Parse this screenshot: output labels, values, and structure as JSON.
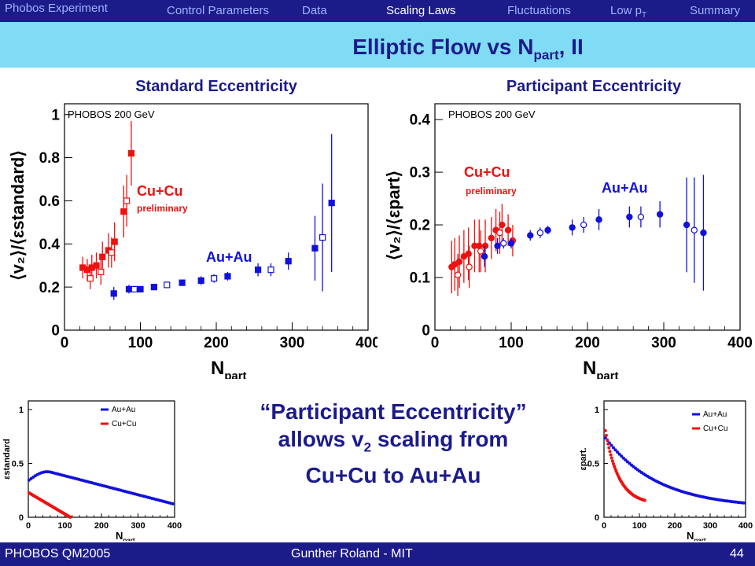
{
  "header": {
    "experiment": "Phobos Experiment",
    "nav": [
      "Control Parameters",
      "Data",
      "Scaling Laws",
      "Fluctuations",
      "Low p",
      "Summary"
    ],
    "nav_low_sub": "T",
    "active": "Scaling Laws"
  },
  "title": {
    "main": "Elliptic Flow vs N",
    "sub": "part",
    "suffix": ", II"
  },
  "message": {
    "line1": "“Participant Eccentricity”",
    "line2_pre": "allows v",
    "line2_sub": "2",
    "line2_post": " scaling from",
    "line3": "Cu+Cu to Au+Au"
  },
  "footer": {
    "left": "PHOBOS QM2005",
    "center": "Gunther Roland - MIT",
    "page": "44"
  },
  "colors": {
    "navy": "#1c1b8a",
    "cyan": "#7fdcf4",
    "red": "#ee1111",
    "blue": "#1111dd"
  },
  "chart_data": [
    {
      "type": "scatter",
      "title": "Standard Eccentricity",
      "label": "PHOBOS  200 GeV",
      "xlabel_main": "N",
      "xlabel_sub": "part",
      "ylabel": "⟨v₂⟩/⟨εstandard⟩",
      "xlim": [
        0,
        400
      ],
      "ylim": [
        0,
        1.05
      ],
      "xticks": [
        0,
        100,
        200,
        300,
        400
      ],
      "yticks": [
        0,
        0.2,
        0.4,
        0.6,
        0.8,
        1
      ],
      "ytick_labels": [
        "0",
        "0.2",
        "0.4",
        "0.6",
        "0.8",
        "1"
      ],
      "annotations": [
        {
          "text": "Cu+Cu",
          "color": "red"
        },
        {
          "text": "preliminary",
          "color": "red"
        },
        {
          "text": "Au+Au",
          "color": "blue"
        }
      ],
      "series": [
        {
          "name": "Cu+Cu",
          "color": "red",
          "marker": "square",
          "filled": true,
          "x": [
            24,
            30,
            36,
            42,
            50,
            58,
            66,
            78,
            88
          ],
          "y": [
            0.29,
            0.28,
            0.29,
            0.3,
            0.34,
            0.37,
            0.41,
            0.55,
            0.82
          ],
          "err": [
            0.05,
            0.05,
            0.06,
            0.06,
            0.07,
            0.08,
            0.09,
            0.12,
            0.15
          ]
        },
        {
          "name": "Cu+Cu",
          "color": "red",
          "marker": "square",
          "filled": false,
          "x": [
            34,
            48,
            62,
            82
          ],
          "y": [
            0.24,
            0.27,
            0.36,
            0.6
          ],
          "err": [
            0.05,
            0.06,
            0.07,
            0.12
          ]
        },
        {
          "name": "Au+Au",
          "color": "blue",
          "marker": "square",
          "filled": true,
          "x": [
            65,
            85,
            100,
            118,
            155,
            180,
            215,
            255,
            295,
            330,
            352
          ],
          "y": [
            0.17,
            0.19,
            0.19,
            0.2,
            0.22,
            0.23,
            0.25,
            0.28,
            0.32,
            0.38,
            0.59
          ],
          "err": [
            0.03,
            0.02,
            0.01,
            0.01,
            0.01,
            0.02,
            0.02,
            0.03,
            0.04,
            0.15,
            0.32
          ]
        },
        {
          "name": "Au+Au",
          "color": "blue",
          "marker": "square",
          "filled": false,
          "x": [
            92,
            135,
            197,
            272,
            340
          ],
          "y": [
            0.19,
            0.21,
            0.24,
            0.28,
            0.43
          ],
          "err": [
            0.01,
            0.01,
            0.02,
            0.03,
            0.25
          ]
        }
      ]
    },
    {
      "type": "scatter",
      "title": "Participant Eccentricity",
      "label": "PHOBOS  200 GeV",
      "xlabel_main": "N",
      "xlabel_sub": "part",
      "ylabel": "⟨v₂⟩/⟨εpart⟩",
      "xlim": [
        0,
        400
      ],
      "ylim": [
        0,
        0.43
      ],
      "xticks": [
        0,
        100,
        200,
        300,
        400
      ],
      "yticks": [
        0,
        0.1,
        0.2,
        0.3,
        0.4
      ],
      "ytick_labels": [
        "0",
        "0.1",
        "0.2",
        "0.3",
        "0.4"
      ],
      "annotations": [
        {
          "text": "Cu+Cu",
          "color": "red"
        },
        {
          "text": "preliminary",
          "color": "red"
        },
        {
          "text": "Au+Au",
          "color": "blue"
        }
      ],
      "series": [
        {
          "name": "Cu+Cu",
          "color": "red",
          "marker": "circle",
          "filled": true,
          "x": [
            22,
            26,
            32,
            38,
            44,
            52,
            58,
            66,
            74,
            80,
            88,
            96,
            102
          ],
          "y": [
            0.12,
            0.125,
            0.13,
            0.14,
            0.145,
            0.16,
            0.16,
            0.16,
            0.175,
            0.19,
            0.2,
            0.19,
            0.17
          ],
          "err": [
            0.05,
            0.05,
            0.05,
            0.05,
            0.05,
            0.05,
            0.05,
            0.05,
            0.04,
            0.04,
            0.04,
            0.03,
            0.03
          ]
        },
        {
          "name": "Cu+Cu",
          "color": "red",
          "marker": "circle",
          "filled": false,
          "x": [
            30,
            45,
            60,
            85
          ],
          "y": [
            0.105,
            0.12,
            0.15,
            0.185
          ],
          "err": [
            0.04,
            0.04,
            0.04,
            0.04
          ]
        },
        {
          "name": "Au+Au",
          "color": "blue",
          "marker": "circle",
          "filled": true,
          "x": [
            65,
            82,
            100,
            125,
            148,
            180,
            215,
            255,
            295,
            330,
            352
          ],
          "y": [
            0.14,
            0.16,
            0.165,
            0.18,
            0.19,
            0.195,
            0.21,
            0.215,
            0.22,
            0.2,
            0.185
          ],
          "err": [
            0.02,
            0.015,
            0.01,
            0.01,
            0.008,
            0.015,
            0.02,
            0.02,
            0.025,
            0.09,
            0.11
          ]
        },
        {
          "name": "Au+Au",
          "color": "blue",
          "marker": "circle",
          "filled": false,
          "x": [
            90,
            138,
            195,
            270,
            340
          ],
          "y": [
            0.165,
            0.185,
            0.2,
            0.215,
            0.19
          ],
          "err": [
            0.01,
            0.01,
            0.015,
            0.02,
            0.1
          ]
        }
      ]
    },
    {
      "type": "scatter",
      "xlabel_main": "N",
      "xlabel_sub": "part",
      "ylabel": "εstandard",
      "xlim": [
        0,
        400
      ],
      "ylim": [
        0,
        1.08
      ],
      "xticks": [
        0,
        100,
        200,
        300,
        400
      ],
      "yticks": [
        0,
        0.5,
        1
      ],
      "ytick_labels": [
        "0",
        "0.5",
        "1"
      ],
      "legend": [
        {
          "text": "Au+Au",
          "color": "blue"
        },
        {
          "text": "Cu+Cu",
          "color": "red"
        }
      ],
      "curves": [
        {
          "name": "Au+Au",
          "color": "blue",
          "xs": 2,
          "xe": 395,
          "n": 70,
          "f": "auStd"
        },
        {
          "name": "Cu+Cu",
          "color": "red",
          "xs": 2,
          "xe": 115,
          "n": 45,
          "f": "cuStd"
        }
      ]
    },
    {
      "type": "scatter",
      "xlabel_main": "N",
      "xlabel_sub": "part",
      "ylabel": "εpart.",
      "xlim": [
        0,
        400
      ],
      "ylim": [
        0,
        1.08
      ],
      "xticks": [
        0,
        100,
        200,
        300,
        400
      ],
      "yticks": [
        0,
        0.5,
        1
      ],
      "ytick_labels": [
        "0",
        "0.5",
        "1"
      ],
      "legend": [
        {
          "text": "Au+Au",
          "color": "blue"
        },
        {
          "text": "Cu+Cu",
          "color": "red"
        }
      ],
      "curves": [
        {
          "name": "Au+Au",
          "color": "blue",
          "xs": 4,
          "xe": 395,
          "n": 70,
          "f": "auPart"
        },
        {
          "name": "Cu+Cu",
          "color": "red",
          "xs": 4,
          "xe": 115,
          "n": 45,
          "f": "cuPart"
        }
      ]
    }
  ]
}
